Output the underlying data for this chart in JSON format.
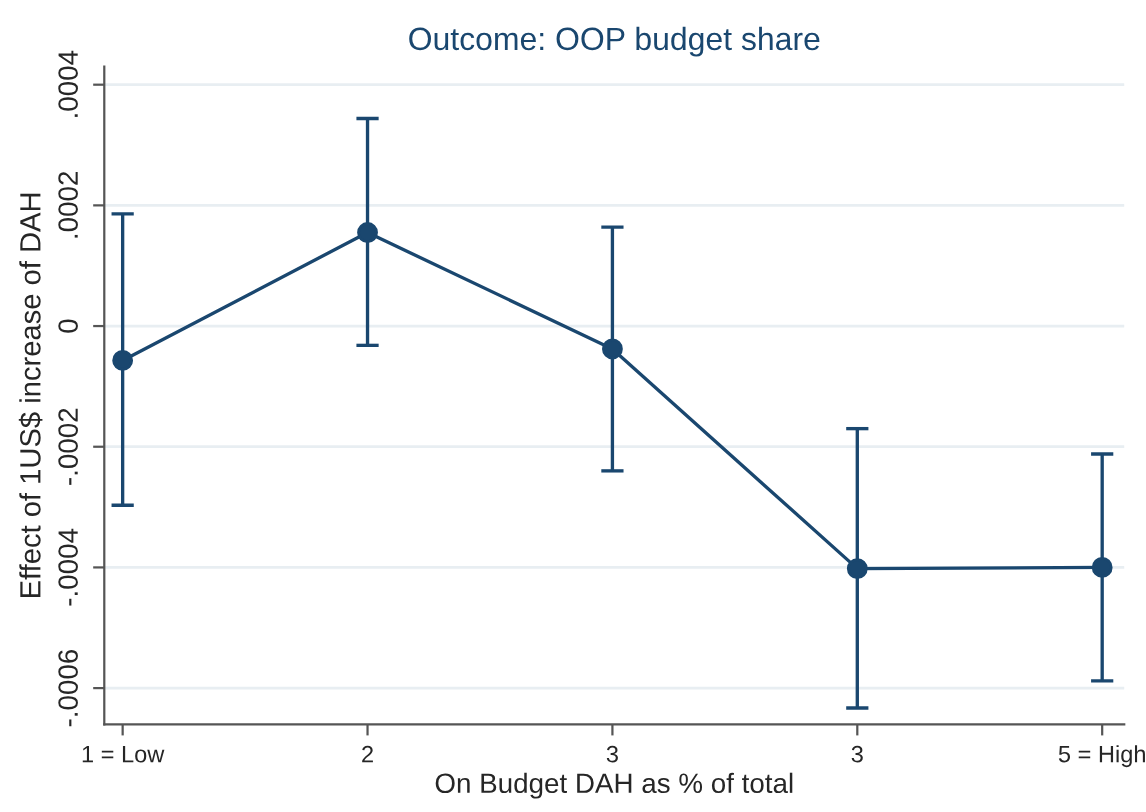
{
  "chart_data": {
    "type": "line",
    "title": "Outcome: OOP budget share",
    "xlabel": "On Budget DAH as % of total",
    "ylabel": "Effect of 1US$ increase of DAH",
    "categories": [
      "1 = Low",
      "2",
      "3",
      "3",
      "5 = High"
    ],
    "series": [
      {
        "color": "#1a476f",
        "values": [
          -5.7e-05,
          0.000155,
          -3.8e-05,
          -0.000402,
          -0.0004
        ],
        "errors": [
          [
            -0.000297,
            0.000186
          ],
          [
            -3.2e-05,
            0.000344
          ],
          [
            -0.00024,
            0.000164
          ],
          [
            -0.000633,
            -0.00017
          ],
          [
            -0.000588,
            -0.000212
          ]
        ]
      }
    ],
    "ylim": [
      -0.00066,
      0.00043
    ],
    "yticks": [
      {
        "value": -0.0006,
        "label": "-.0006"
      },
      {
        "value": -0.0004,
        "label": "-.0004"
      },
      {
        "value": -0.0002,
        "label": "-.0002"
      },
      0,
      {
        "value": 0.0002,
        "label": ".0002"
      },
      {
        "value": 0.0004,
        "label": ".0004"
      }
    ],
    "grid": "y",
    "marker": "circle",
    "line_style": "solid"
  }
}
